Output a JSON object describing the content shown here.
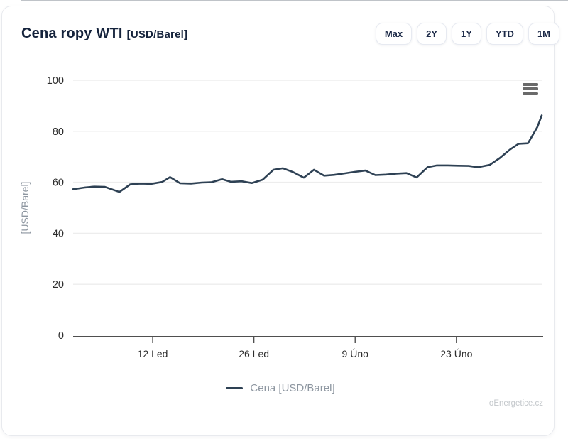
{
  "card": {
    "title": "Cena ropy WTI",
    "title_unit": "[USD/Barel]",
    "range_buttons": [
      "Max",
      "2Y",
      "1Y",
      "YTD",
      "1M"
    ],
    "context_menu_icon": "hamburger-menu-icon",
    "watermark": "oEnergetice.cz"
  },
  "colors": {
    "title_navy": "#15233c",
    "line_navy": "#2e4154",
    "gridline": "#ededed",
    "axis_line": "#4f4f4f",
    "tick_text": "#2d2d2d",
    "muted_text": "#8d96a0",
    "watermark_text": "#c3c7cb",
    "button_border": "#e7eaf1"
  },
  "chart_data": {
    "type": "line",
    "title": "Cena ropy WTI [USD/Barel]",
    "xlabel": "",
    "ylabel": "[USD/Barel]",
    "ylim": [
      0,
      100
    ],
    "yticks": [
      0,
      20,
      40,
      60,
      80,
      100
    ],
    "xlim": [
      0,
      64.8
    ],
    "xticks": [
      {
        "x": 11,
        "label": "12 Led"
      },
      {
        "x": 25,
        "label": "26 Led"
      },
      {
        "x": 39,
        "label": "9 Úno"
      },
      {
        "x": 53,
        "label": "23 Úno"
      }
    ],
    "grid": "horizontal-only",
    "legend_position": "bottom-center",
    "series": [
      {
        "name": "Cena [USD/Barel]",
        "color": "#2e4154",
        "points": [
          [
            0,
            57.3
          ],
          [
            1.5,
            57.9
          ],
          [
            2.9,
            58.3
          ],
          [
            4.4,
            58.2
          ],
          [
            6.4,
            56.2
          ],
          [
            7.9,
            59.2
          ],
          [
            9.3,
            59.5
          ],
          [
            10.8,
            59.4
          ],
          [
            12.3,
            60.1
          ],
          [
            13.4,
            62.0
          ],
          [
            14.8,
            59.6
          ],
          [
            16.3,
            59.5
          ],
          [
            17.8,
            59.9
          ],
          [
            19.1,
            60.0
          ],
          [
            20.6,
            61.2
          ],
          [
            21.8,
            60.2
          ],
          [
            23.3,
            60.4
          ],
          [
            24.7,
            59.7
          ],
          [
            26.2,
            61.0
          ],
          [
            27.7,
            64.9
          ],
          [
            29.0,
            65.5
          ],
          [
            30.4,
            64.0
          ],
          [
            31.9,
            61.8
          ],
          [
            33.3,
            64.9
          ],
          [
            34.7,
            62.6
          ],
          [
            36.1,
            62.9
          ],
          [
            37.6,
            63.5
          ],
          [
            39.0,
            64.1
          ],
          [
            40.4,
            64.6
          ],
          [
            41.8,
            62.8
          ],
          [
            43.3,
            63.0
          ],
          [
            44.7,
            63.4
          ],
          [
            46.1,
            63.6
          ],
          [
            47.5,
            61.9
          ],
          [
            49.0,
            65.9
          ],
          [
            50.3,
            66.6
          ],
          [
            51.8,
            66.6
          ],
          [
            53.2,
            66.5
          ],
          [
            54.7,
            66.4
          ],
          [
            56.0,
            65.9
          ],
          [
            57.6,
            66.8
          ],
          [
            59.0,
            69.5
          ],
          [
            60.4,
            72.8
          ],
          [
            61.6,
            75.1
          ],
          [
            62.9,
            75.3
          ],
          [
            64.2,
            81.7
          ],
          [
            64.8,
            86.2
          ]
        ]
      }
    ]
  }
}
